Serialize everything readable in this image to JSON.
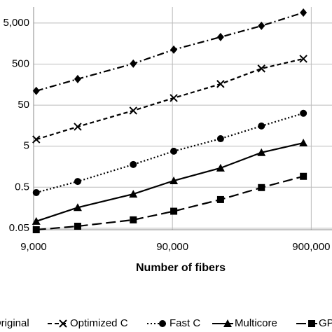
{
  "chart_data": {
    "type": "line",
    "x_label": "Number of fibers",
    "x": [
      9400,
      18700,
      47000,
      92000,
      200000,
      394000,
      790000
    ],
    "series": [
      {
        "name": "Original",
        "color": "#000000",
        "marker": "diamond",
        "dash": "10 4 2 4",
        "values": [
          111,
          216,
          512,
          1125,
          2280,
          4270,
          9000
        ]
      },
      {
        "name": "Optimized C",
        "color": "#000000",
        "marker": "x",
        "dash": "6 4",
        "values": [
          7.3,
          14.9,
          36.8,
          74.6,
          164,
          389,
          674
        ]
      },
      {
        "name": "Fast C",
        "color": "#000000",
        "marker": "circle",
        "dash": "2 3",
        "values": [
          0.37,
          0.69,
          1.79,
          3.77,
          7.6,
          15.5,
          31.6
        ]
      },
      {
        "name": "Multicore",
        "color": "#000000",
        "marker": "triangle",
        "dash": "none",
        "values": [
          0.074,
          0.16,
          0.34,
          0.72,
          1.47,
          3.5,
          6.0
        ]
      },
      {
        "name": "GPU",
        "color": "#000000",
        "marker": "square",
        "dash": "14 6",
        "values": [
          0.046,
          0.056,
          0.08,
          0.13,
          0.25,
          0.49,
          0.92
        ]
      }
    ],
    "xlog": true,
    "ylog": true,
    "xlim": [
      9000,
      1270000
    ],
    "ylim": [
      0.046,
      12300
    ],
    "xticks": [
      {
        "value": 9000,
        "label": "9,000"
      },
      {
        "value": 90000,
        "label": "90,000"
      },
      {
        "value": 900000,
        "label": "900,000"
      }
    ],
    "yticks": [
      0.05,
      0.5,
      5,
      50,
      500,
      {
        "value": 5000,
        "label": "5,000"
      }
    ],
    "grid": true,
    "legend": "bottom"
  }
}
